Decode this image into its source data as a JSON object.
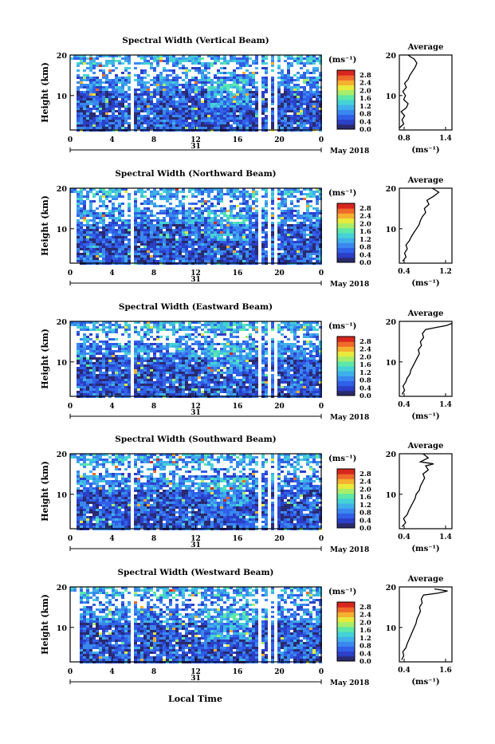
{
  "figure": {
    "xlabel": "Local Time",
    "date_label": "May 2018",
    "day_label": "31",
    "ylabel": "Height (km)",
    "cbar_unit": "(ms⁻¹)",
    "avg_title": "Average",
    "avg_xlabel": "(ms⁻¹)"
  },
  "colors": {
    "scale": [
      "#2a2a6e",
      "#2b3fc7",
      "#3060e8",
      "#3a88ef",
      "#3fb0ea",
      "#45d2d6",
      "#5ee8a8",
      "#a8ee6a",
      "#e8ea3c",
      "#f5b030",
      "#ef6a2a",
      "#d8261e"
    ]
  },
  "chart_data": [
    {
      "type": "heatmap",
      "title": "Spectral Width (Vertical Beam)",
      "xlim": [
        0,
        24
      ],
      "ylim": [
        1.5,
        20
      ],
      "xticks": [
        "0",
        "4",
        "8",
        "12",
        "16",
        "20",
        "0"
      ],
      "yticks": [
        "20",
        "10"
      ],
      "cbar_ticks": [
        "2.8",
        "2.4",
        "2.0",
        "1.6",
        "1.2",
        "0.8",
        "0.4",
        "0.0"
      ],
      "gaps": [
        [
          5.6,
          6.0
        ],
        [
          17.8,
          18.1
        ],
        [
          18.6,
          18.9
        ],
        [
          19.3,
          19.6
        ]
      ],
      "avg": {
        "xlim": [
          0.8,
          1.4
        ],
        "xticks": [
          "0.8",
          "1.4"
        ],
        "x": [
          0.8,
          0.85,
          0.83,
          0.86,
          0.82,
          0.88,
          0.9,
          0.85,
          0.87,
          0.84,
          0.88,
          0.86,
          0.9,
          0.92,
          0.95,
          0.98,
          1.0,
          0.97,
          0.93,
          0.9
        ],
        "y": [
          2,
          3,
          4,
          5,
          6,
          7,
          8,
          9,
          10,
          11,
          12,
          13,
          14,
          15,
          16,
          17,
          18,
          19,
          19.5,
          20
        ]
      }
    },
    {
      "type": "heatmap",
      "title": "Spectral Width (Northward Beam)",
      "xlim": [
        0,
        24
      ],
      "ylim": [
        1.5,
        20
      ],
      "xticks": [
        "0",
        "4",
        "8",
        "12",
        "16",
        "20",
        "0"
      ],
      "yticks": [
        "20",
        "10"
      ],
      "cbar_ticks": [
        "2.8",
        "2.4",
        "2.0",
        "1.6",
        "1.2",
        "0.8",
        "0.4",
        "0.0"
      ],
      "gaps": [
        [
          5.6,
          6.0
        ],
        [
          17.8,
          18.1
        ],
        [
          18.6,
          18.9
        ],
        [
          19.3,
          19.6
        ]
      ],
      "avg": {
        "xlim": [
          0.4,
          1.2
        ],
        "xticks": [
          "0.4",
          "1.2"
        ],
        "x": [
          0.45,
          0.5,
          0.48,
          0.52,
          0.5,
          0.55,
          0.58,
          0.62,
          0.66,
          0.7,
          0.72,
          0.75,
          0.8,
          0.78,
          0.85,
          0.82,
          0.92,
          1.0,
          0.95,
          0.9
        ],
        "y": [
          2,
          3,
          4,
          5,
          6,
          7,
          8,
          9,
          10,
          11,
          12,
          13,
          14,
          15,
          16,
          17,
          18,
          19,
          19.5,
          20
        ]
      }
    },
    {
      "type": "heatmap",
      "title": "Spectral Width (Eastward Beam)",
      "xlim": [
        0,
        24
      ],
      "ylim": [
        1.5,
        20
      ],
      "xticks": [
        "0",
        "4",
        "8",
        "12",
        "16",
        "20",
        "0"
      ],
      "yticks": [
        "20",
        "10"
      ],
      "cbar_ticks": [
        "2.8",
        "2.4",
        "2.0",
        "1.6",
        "1.2",
        "0.8",
        "0.4",
        "0.0"
      ],
      "gaps": [
        [
          5.6,
          6.0
        ],
        [
          17.8,
          18.1
        ],
        [
          18.6,
          18.9
        ],
        [
          19.3,
          19.6
        ]
      ],
      "avg": {
        "xlim": [
          0.4,
          1.4
        ],
        "xticks": [
          "0.4",
          "1.4"
        ],
        "x": [
          0.45,
          0.5,
          0.47,
          0.52,
          0.55,
          0.6,
          0.62,
          0.66,
          0.7,
          0.74,
          0.78,
          0.76,
          0.82,
          0.8,
          0.86,
          0.84,
          0.9,
          1.1,
          1.3,
          1.4
        ],
        "y": [
          2,
          3,
          4,
          5,
          6,
          7,
          8,
          9,
          10,
          11,
          12,
          13,
          14,
          15,
          16,
          17,
          18,
          18.5,
          19,
          19.5
        ]
      }
    },
    {
      "type": "heatmap",
      "title": "Spectral Width (Southward Beam)",
      "xlim": [
        0,
        24
      ],
      "ylim": [
        1.5,
        20
      ],
      "xticks": [
        "0",
        "4",
        "8",
        "12",
        "16",
        "20",
        "0"
      ],
      "yticks": [
        "20",
        "10"
      ],
      "cbar_ticks": [
        "2.8",
        "2.4",
        "2.0",
        "1.6",
        "1.2",
        "0.8",
        "0.4",
        "0.0"
      ],
      "gaps": [
        [
          5.6,
          6.0
        ],
        [
          17.8,
          18.1
        ],
        [
          18.6,
          18.9
        ],
        [
          19.3,
          19.6
        ]
      ],
      "avg": {
        "xlim": [
          0.4,
          1.4
        ],
        "xticks": [
          "0.4",
          "1.4"
        ],
        "x": [
          0.45,
          0.52,
          0.48,
          0.55,
          0.58,
          0.62,
          0.66,
          0.7,
          0.72,
          0.78,
          0.8,
          0.84,
          0.88,
          0.85,
          0.95,
          0.9,
          1.05,
          0.8,
          0.95,
          0.85
        ],
        "y": [
          2,
          3,
          4,
          5,
          6,
          7,
          8,
          9,
          10,
          11,
          12,
          13,
          14,
          15,
          16,
          17,
          17.5,
          18,
          19,
          20
        ]
      }
    },
    {
      "type": "heatmap",
      "title": "Spectral Width (Westward Beam)",
      "xlim": [
        0,
        24
      ],
      "ylim": [
        1.5,
        20
      ],
      "xticks": [
        "0",
        "4",
        "8",
        "12",
        "16",
        "20",
        "0"
      ],
      "yticks": [
        "20",
        "10"
      ],
      "cbar_ticks": [
        "2.8",
        "2.4",
        "2.0",
        "1.6",
        "1.2",
        "0.8",
        "0.4",
        "0.0"
      ],
      "gaps": [
        [
          0.6,
          0.9
        ],
        [
          5.6,
          6.0
        ],
        [
          17.8,
          18.1
        ],
        [
          18.6,
          18.9
        ],
        [
          19.3,
          19.6
        ]
      ],
      "avg": {
        "xlim": [
          0.4,
          1.6
        ],
        "xticks": [
          "0.4",
          "1.6"
        ],
        "x": [
          0.45,
          0.5,
          0.48,
          0.55,
          0.58,
          0.62,
          0.66,
          0.7,
          0.74,
          0.78,
          0.8,
          0.84,
          0.88,
          0.86,
          0.92,
          0.9,
          0.95,
          1.3,
          1.5,
          1.2
        ],
        "y": [
          2,
          3,
          4,
          5,
          6,
          7,
          8,
          9,
          10,
          11,
          12,
          13,
          14,
          15,
          16,
          17,
          18,
          18.5,
          19,
          19.5
        ]
      }
    }
  ]
}
